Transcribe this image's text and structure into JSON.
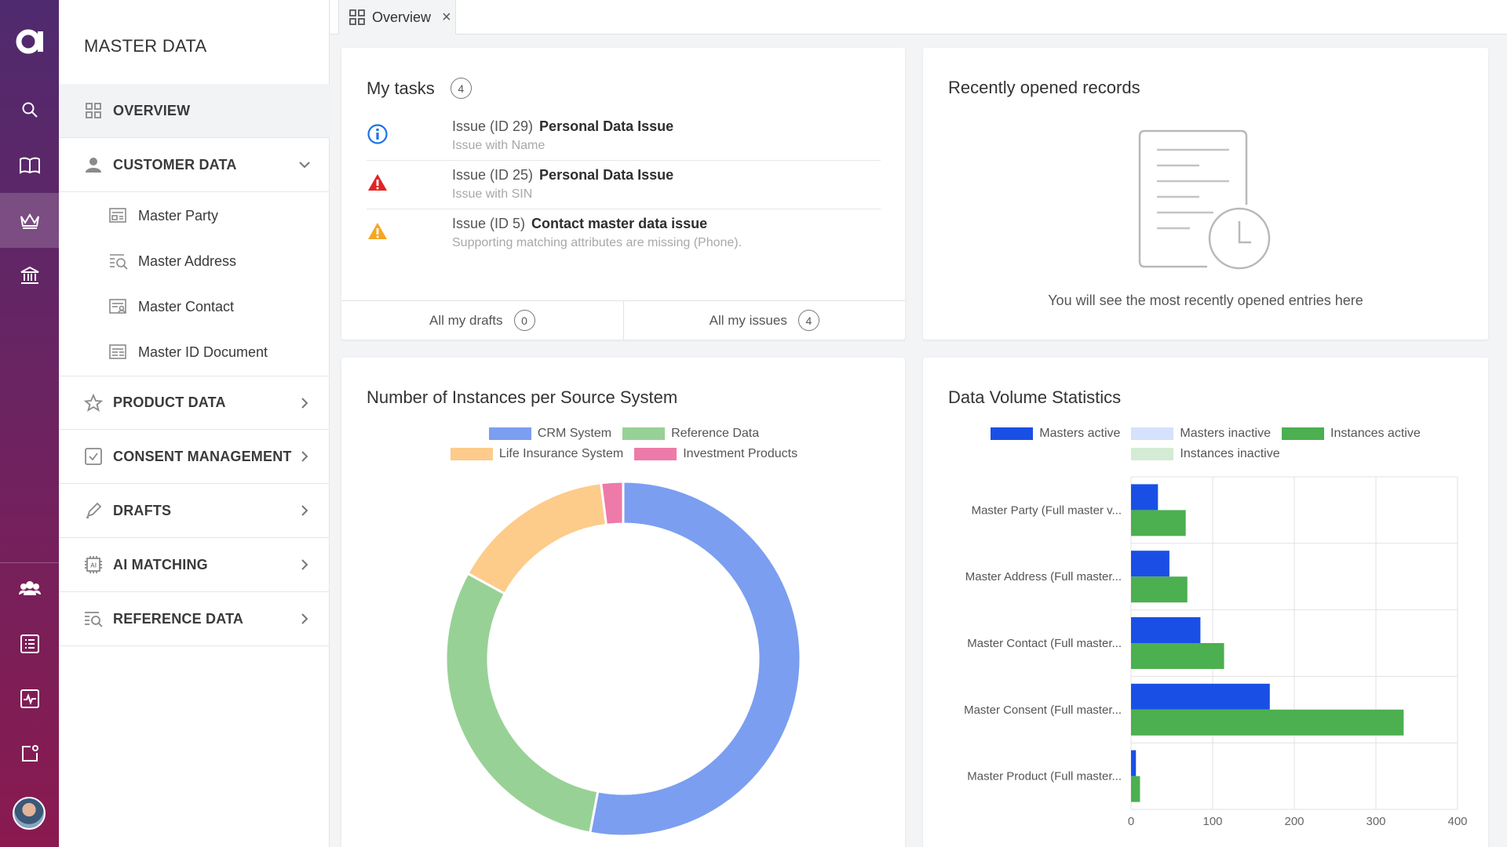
{
  "sidebar": {
    "title": "MASTER DATA",
    "overview_label": "OVERVIEW",
    "customer_data_label": "CUSTOMER DATA",
    "customer_items": [
      "Master Party",
      "Master Address",
      "Master Contact",
      "Master ID Document"
    ],
    "product_data_label": "PRODUCT DATA",
    "consent_label": "CONSENT MANAGEMENT",
    "drafts_label": "DRAFTS",
    "ai_matching_label": "AI MATCHING",
    "reference_label": "REFERENCE DATA"
  },
  "tabs": [
    {
      "label": "Overview",
      "close": "×"
    }
  ],
  "tasks": {
    "title": "My tasks",
    "count": "4",
    "items": [
      {
        "id": "Issue (ID 29)",
        "title": "Personal Data Issue",
        "subtitle": "Issue with Name",
        "icon": "info-icon"
      },
      {
        "id": "Issue (ID 25)",
        "title": "Personal Data Issue",
        "subtitle": "Issue with SIN",
        "icon": "error-icon"
      },
      {
        "id": "Issue (ID 5)",
        "title": "Contact master data issue",
        "subtitle": "Supporting matching attributes are missing (Phone).",
        "icon": "warning-icon"
      }
    ],
    "drafts_label": "All my drafts",
    "drafts_count": "0",
    "issues_label": "All my issues",
    "issues_count": "4"
  },
  "recent": {
    "title": "Recently opened records",
    "empty_text": "You will see the most recently opened entries here"
  },
  "colors": {
    "brand_top": "#4f2a6e",
    "brand_bottom": "#8a1a50",
    "info": "#1a73e8",
    "error": "#e02424",
    "warning": "#f5a623"
  },
  "chart_data": [
    {
      "type": "pie",
      "title": "Number of Instances per Source System",
      "donut": true,
      "categories": [
        "CRM System",
        "Reference Data",
        "Life Insurance System",
        "Investment Products"
      ],
      "values": [
        53,
        30,
        15,
        2
      ],
      "colors": [
        "#7b9ef0",
        "#98d196",
        "#fdcb8a",
        "#ee7aa9"
      ],
      "legend": "top"
    },
    {
      "type": "bar",
      "orientation": "horizontal",
      "title": "Data Volume Statistics",
      "categories": [
        "Master Party (Full master v...",
        "Master Address (Full master...",
        "Master Contact (Full master...",
        "Master Consent (Full master...",
        "Master Product (Full master..."
      ],
      "series": [
        {
          "name": "Masters active",
          "values": [
            33,
            47,
            85,
            170,
            6
          ],
          "color": "#1a4fe6"
        },
        {
          "name": "Masters inactive",
          "values": [
            0,
            0,
            0,
            0,
            0
          ],
          "color": "#d6e1fb"
        },
        {
          "name": "Instances active",
          "values": [
            67,
            69,
            114,
            334,
            11
          ],
          "color": "#4caf50"
        },
        {
          "name": "Instances inactive",
          "values": [
            0,
            0,
            0,
            0,
            0
          ],
          "color": "#d3ecd3"
        }
      ],
      "xlim": [
        0,
        400
      ],
      "xticks": [
        0,
        100,
        200,
        300,
        400
      ],
      "grid": true,
      "legend": "top"
    }
  ]
}
